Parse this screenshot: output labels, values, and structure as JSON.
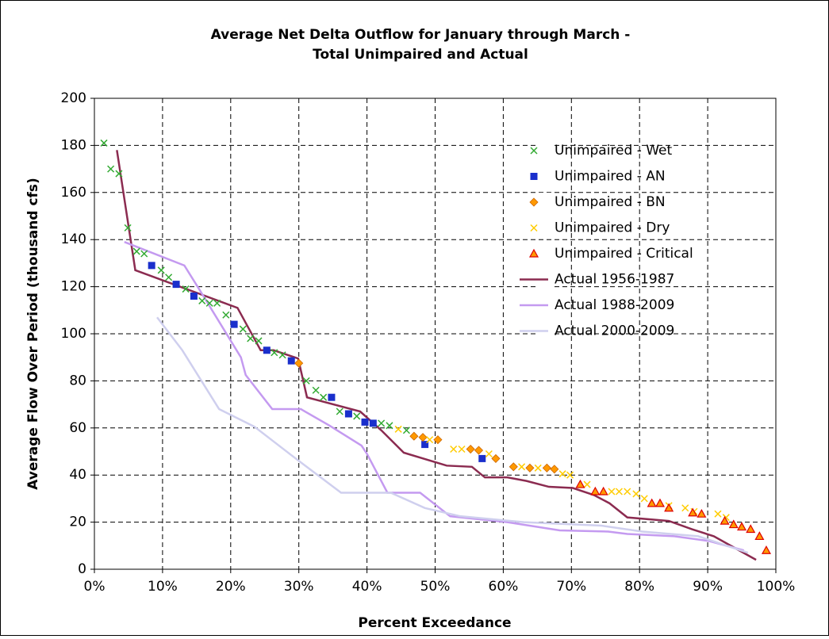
{
  "chart_data": {
    "type": "scatter",
    "title": [
      "Average Net Delta Outflow for January through March -",
      "Total Unimpaired and Actual"
    ],
    "x_label": "Percent Exceedance",
    "y_label": "Average Flow Over Period (thousand cfs)",
    "xlim": [
      0,
      100
    ],
    "xticks": [
      {
        "value": 0,
        "label": "0%"
      },
      {
        "value": 10,
        "label": "10%"
      },
      {
        "value": 20,
        "label": "20%"
      },
      {
        "value": 30,
        "label": "30%"
      },
      {
        "value": 40,
        "label": "40%"
      },
      {
        "value": 50,
        "label": "50%"
      },
      {
        "value": 60,
        "label": "60%"
      },
      {
        "value": 70,
        "label": "70%"
      },
      {
        "value": 80,
        "label": "80%"
      },
      {
        "value": 90,
        "label": "90%"
      },
      {
        "value": 100,
        "label": "100%"
      }
    ],
    "ylim": [
      0,
      200
    ],
    "yticks": [
      0,
      20,
      40,
      60,
      80,
      100,
      120,
      140,
      160,
      180,
      200
    ],
    "grid": true,
    "legend": "upper right",
    "series": [
      {
        "name": "Unimpaired - Wet",
        "color": "#33aa33",
        "marker": "x",
        "x": [
          1.4,
          2.4,
          3.6,
          4.9,
          6.2,
          7.3,
          9.8,
          10.9,
          13.4,
          15.8,
          16.9,
          18,
          19.3,
          21.8,
          22.9,
          24.1,
          26.4,
          27.6,
          31.1,
          32.5,
          33.6,
          36,
          38.5,
          42.1,
          43.3,
          45.8
        ],
        "values": [
          181,
          170,
          168,
          145,
          135,
          134,
          127,
          124,
          119,
          114,
          113,
          113,
          108,
          102,
          98,
          97,
          92,
          91,
          80,
          76,
          73,
          67,
          65,
          62,
          61,
          59
        ]
      },
      {
        "name": "Unimpaired - AN",
        "color": "#1a2fcc",
        "marker": "square",
        "x": [
          8.4,
          12,
          14.6,
          20.5,
          25.3,
          28.9,
          34.8,
          37.3,
          39.7,
          40.9,
          48.5,
          56.9
        ],
        "values": [
          129,
          121,
          116,
          104,
          93,
          88.5,
          73,
          66,
          62.5,
          62,
          53,
          47
        ]
      },
      {
        "name": "Unimpaired - BN",
        "color": "#ff9900",
        "marker": "diamond",
        "x": [
          30,
          46.9,
          48.2,
          50.4,
          55.2,
          56.4,
          58.9,
          61.5,
          63.9,
          66.4,
          67.5
        ],
        "values": [
          87.5,
          56.5,
          56,
          55,
          51,
          50.5,
          47,
          43.5,
          43,
          43,
          42.5
        ]
      },
      {
        "name": "Unimpaired - Dry",
        "color": "#ffcc00",
        "marker": "x",
        "x": [
          44.6,
          49.2,
          52.7,
          53.9,
          57.9,
          62.7,
          65.1,
          68.7,
          69.8,
          72.3,
          75.9,
          77,
          78.2,
          79.5,
          80.7,
          84.3,
          86.7,
          88,
          91.5,
          92.7
        ],
        "values": [
          59.5,
          55,
          51,
          51,
          49,
          43.5,
          43,
          40.5,
          40,
          36,
          33,
          33,
          33,
          32,
          30,
          27,
          26,
          24.5,
          23.5,
          22
        ]
      },
      {
        "name": "Unimpaired - Critical",
        "color": "#ff9900",
        "marker": "triangle",
        "x": [
          71.3,
          73.5,
          74.7,
          81.8,
          83,
          84.3,
          87.8,
          89.1,
          92.5,
          93.8,
          95,
          96.3,
          97.6,
          98.6
        ],
        "values": [
          36,
          33,
          33,
          28,
          28,
          26,
          24,
          23.5,
          20.5,
          19,
          18,
          17,
          14,
          8
        ]
      },
      {
        "name": "Actual 1956-1987",
        "color": "#8b2b50",
        "marker": "line",
        "x": [
          3.3,
          6,
          21,
          24.4,
          26.3,
          29.9,
          31.2,
          39,
          42.1,
          45.4,
          51.7,
          55.4,
          57.3,
          60.6,
          63.4,
          66.7,
          70.2,
          73.3,
          75.6,
          78.2,
          84.3,
          87.7,
          90.9,
          97.1
        ],
        "values": [
          178,
          127,
          111,
          93,
          93,
          89.5,
          73,
          67,
          59,
          49.5,
          44,
          43.5,
          39,
          39,
          37.5,
          35,
          34.5,
          31.5,
          28,
          22,
          20.5,
          17,
          14,
          4
        ]
      },
      {
        "name": "Actual 1988-2009",
        "color": "#c49af0",
        "marker": "line",
        "x": [
          4.4,
          13.2,
          16,
          21.5,
          22.2,
          26.1,
          30.3,
          34.5,
          39.2,
          40,
          43,
          47.8,
          52.2,
          57.2,
          60.6,
          68.3,
          75.4,
          78.2,
          85.1,
          90.2,
          95.3
        ],
        "values": [
          139,
          129,
          116,
          90,
          82.5,
          68,
          68,
          61,
          52.5,
          49,
          32.5,
          32.5,
          22.5,
          21,
          20,
          16.5,
          16,
          15,
          14,
          12,
          8
        ]
      },
      {
        "name": "Actual 2000-2009",
        "color": "#cfcfee",
        "marker": "line",
        "x": [
          9.2,
          12.9,
          18.3,
          23.5,
          29.1,
          36.2,
          43.5,
          48.5,
          53.7,
          63,
          74.4,
          80.4,
          88.6,
          95.9
        ],
        "values": [
          107,
          93,
          68,
          60.5,
          48,
          32.5,
          32.5,
          26,
          22.5,
          20,
          18.5,
          16,
          14,
          7
        ]
      }
    ]
  }
}
